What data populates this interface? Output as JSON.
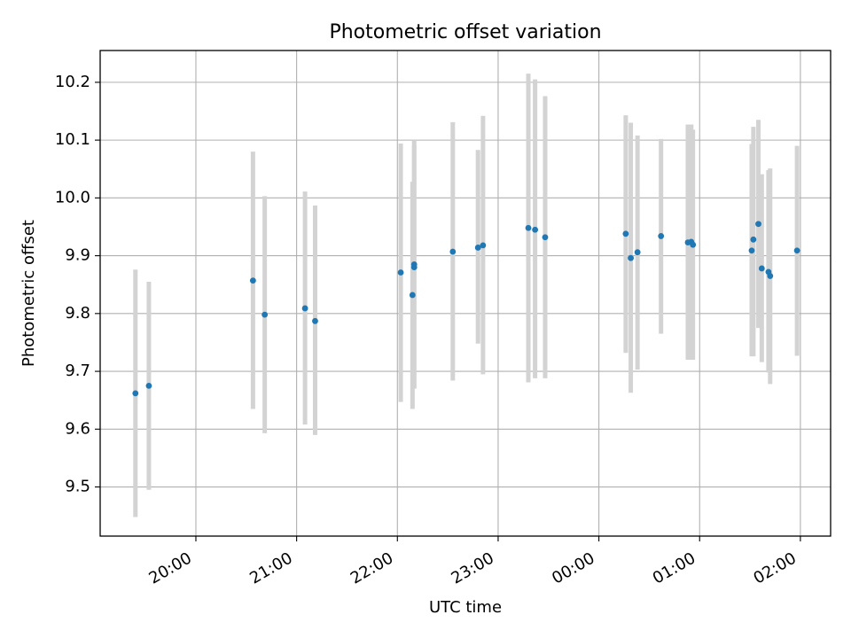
{
  "chart_data": {
    "type": "scatter",
    "title": "Photometric offset variation",
    "xlabel": "UTC time",
    "ylabel": "Photometric offset",
    "x_unit": "UTC time (hours, after 20:00 continues past midnight)",
    "xlim": [
      "19:03",
      "02:18"
    ],
    "ylim": [
      9.415,
      10.255
    ],
    "grid": true,
    "x_ticks": [
      "20:00",
      "21:00",
      "22:00",
      "23:00",
      "00:00",
      "01:00",
      "02:00"
    ],
    "y_ticks": [
      "9.5",
      "9.6",
      "9.7",
      "9.8",
      "9.9",
      "10.0",
      "10.1",
      "10.2"
    ],
    "colors": {
      "points": "#1f77b4",
      "errorbars": "#d3d3d3",
      "grid": "#b0b0b0"
    },
    "points": [
      {
        "x": "19:24",
        "y": 9.662,
        "lo": 9.448,
        "hi": 9.876
      },
      {
        "x": "19:32",
        "y": 9.675,
        "lo": 9.495,
        "hi": 9.855
      },
      {
        "x": "20:34",
        "y": 9.857,
        "lo": 9.635,
        "hi": 10.08
      },
      {
        "x": "20:41",
        "y": 9.798,
        "lo": 9.593,
        "hi": 10.003
      },
      {
        "x": "21:05",
        "y": 9.809,
        "lo": 9.608,
        "hi": 10.011
      },
      {
        "x": "21:11",
        "y": 9.787,
        "lo": 9.59,
        "hi": 9.987
      },
      {
        "x": "22:02",
        "y": 9.871,
        "lo": 9.647,
        "hi": 10.094
      },
      {
        "x": "22:09",
        "y": 9.832,
        "lo": 9.635,
        "hi": 10.028
      },
      {
        "x": "22:10",
        "y": 9.885,
        "lo": 9.67,
        "hi": 10.1
      },
      {
        "x": "22:10",
        "y": 9.88,
        "lo": 9.671,
        "hi": 10.091
      },
      {
        "x": "22:33",
        "y": 9.907,
        "lo": 9.684,
        "hi": 10.131
      },
      {
        "x": "22:48",
        "y": 9.914,
        "lo": 9.748,
        "hi": 10.083
      },
      {
        "x": "22:51",
        "y": 9.918,
        "lo": 9.695,
        "hi": 10.142
      },
      {
        "x": "23:18",
        "y": 9.948,
        "lo": 9.681,
        "hi": 10.215
      },
      {
        "x": "23:22",
        "y": 9.945,
        "lo": 9.688,
        "hi": 10.205
      },
      {
        "x": "23:28",
        "y": 9.932,
        "lo": 9.688,
        "hi": 10.176
      },
      {
        "x": "00:16",
        "y": 9.938,
        "lo": 9.732,
        "hi": 10.143
      },
      {
        "x": "00:19",
        "y": 9.896,
        "lo": 9.663,
        "hi": 10.13
      },
      {
        "x": "00:23",
        "y": 9.906,
        "lo": 9.703,
        "hi": 10.108
      },
      {
        "x": "00:37",
        "y": 9.934,
        "lo": 9.765,
        "hi": 10.102
      },
      {
        "x": "00:53",
        "y": 9.923,
        "lo": 9.72,
        "hi": 10.127
      },
      {
        "x": "00:55",
        "y": 9.924,
        "lo": 9.72,
        "hi": 10.127
      },
      {
        "x": "00:56",
        "y": 9.919,
        "lo": 9.72,
        "hi": 10.118
      },
      {
        "x": "01:31",
        "y": 9.909,
        "lo": 9.726,
        "hi": 10.093
      },
      {
        "x": "01:32",
        "y": 9.928,
        "lo": 9.726,
        "hi": 10.123
      },
      {
        "x": "01:35",
        "y": 9.955,
        "lo": 9.775,
        "hi": 10.135
      },
      {
        "x": "01:37",
        "y": 9.878,
        "lo": 9.716,
        "hi": 10.041
      },
      {
        "x": "01:41",
        "y": 9.872,
        "lo": 9.698,
        "hi": 10.048
      },
      {
        "x": "01:42",
        "y": 9.865,
        "lo": 9.678,
        "hi": 10.051
      },
      {
        "x": "01:58",
        "y": 9.909,
        "lo": 9.727,
        "hi": 10.09
      }
    ]
  }
}
